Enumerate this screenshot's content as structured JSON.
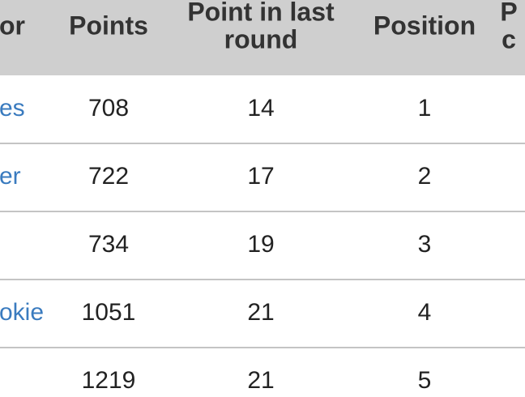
{
  "table": {
    "headers": [
      [
        "or"
      ],
      [
        "Points"
      ],
      [
        "Point in last",
        "round"
      ],
      [
        "Position"
      ],
      [
        "P",
        "c"
      ]
    ],
    "rows": [
      [
        "es",
        708,
        14,
        1
      ],
      [
        "er",
        722,
        17,
        2
      ],
      [
        null,
        734,
        19,
        3
      ],
      [
        "okie",
        1051,
        21,
        4
      ],
      [
        null,
        1219,
        21,
        5
      ]
    ]
  }
}
